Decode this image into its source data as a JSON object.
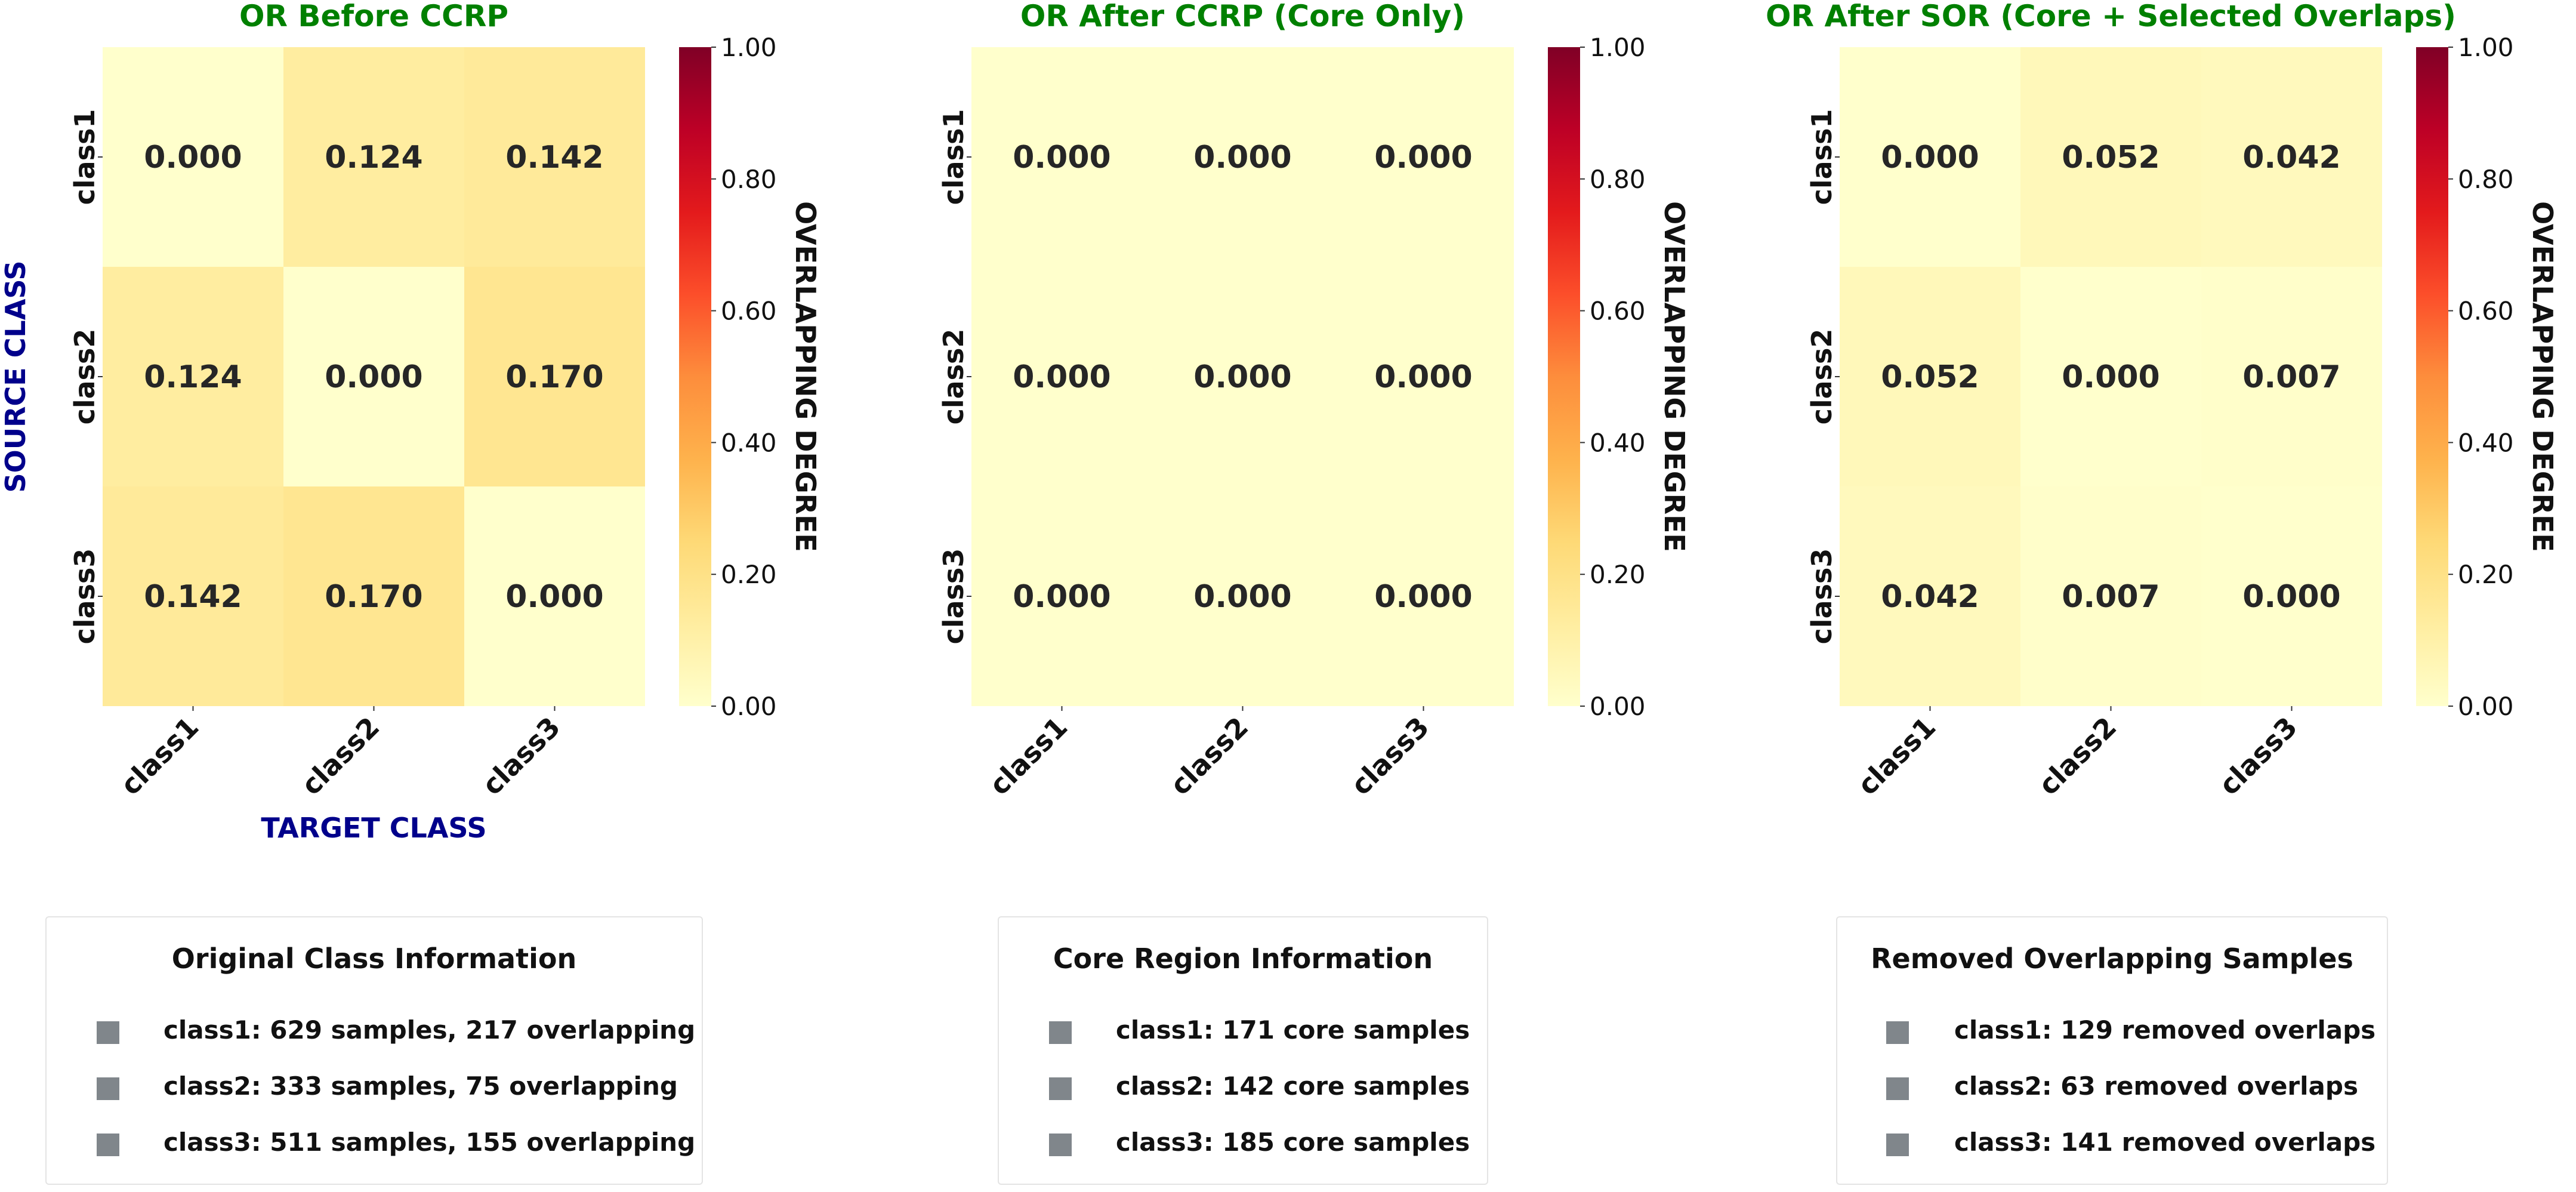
{
  "chart_data": [
    {
      "type": "heatmap",
      "title": "OR Before CCRP",
      "xlabel": "TARGET CLASS",
      "ylabel": "SOURCE CLASS",
      "x_categories": [
        "class1",
        "class2",
        "class3"
      ],
      "y_categories": [
        "class1",
        "class2",
        "class3"
      ],
      "values": [
        [
          0.0,
          0.124,
          0.142
        ],
        [
          0.124,
          0.0,
          0.17
        ],
        [
          0.142,
          0.17,
          0.0
        ]
      ],
      "value_labels": [
        [
          "0.000",
          "0.124",
          "0.142"
        ],
        [
          "0.124",
          "0.000",
          "0.170"
        ],
        [
          "0.142",
          "0.170",
          "0.000"
        ]
      ],
      "colorbar": {
        "label": "OVERLAPPING DEGREE",
        "range": [
          0.0,
          1.0
        ],
        "ticks": [
          "0.00",
          "0.20",
          "0.40",
          "0.60",
          "0.80",
          "1.00"
        ],
        "colormap": "YlOrRd"
      }
    },
    {
      "type": "heatmap",
      "title": "OR After CCRP (Core Only)",
      "xlabel": "",
      "ylabel": "",
      "x_categories": [
        "class1",
        "class2",
        "class3"
      ],
      "y_categories": [
        "class1",
        "class2",
        "class3"
      ],
      "values": [
        [
          0.0,
          0.0,
          0.0
        ],
        [
          0.0,
          0.0,
          0.0
        ],
        [
          0.0,
          0.0,
          0.0
        ]
      ],
      "value_labels": [
        [
          "0.000",
          "0.000",
          "0.000"
        ],
        [
          "0.000",
          "0.000",
          "0.000"
        ],
        [
          "0.000",
          "0.000",
          "0.000"
        ]
      ],
      "colorbar": {
        "label": "OVERLAPPING DEGREE",
        "range": [
          0.0,
          1.0
        ],
        "ticks": [
          "0.00",
          "0.20",
          "0.40",
          "0.60",
          "0.80",
          "1.00"
        ],
        "colormap": "YlOrRd"
      }
    },
    {
      "type": "heatmap",
      "title": "OR After SOR (Core + Selected Overlaps)",
      "xlabel": "",
      "ylabel": "",
      "x_categories": [
        "class1",
        "class2",
        "class3"
      ],
      "y_categories": [
        "class1",
        "class2",
        "class3"
      ],
      "values": [
        [
          0.0,
          0.052,
          0.042
        ],
        [
          0.052,
          0.0,
          0.007
        ],
        [
          0.042,
          0.007,
          0.0
        ]
      ],
      "value_labels": [
        [
          "0.000",
          "0.052",
          "0.042"
        ],
        [
          "0.052",
          "0.000",
          "0.007"
        ],
        [
          "0.042",
          "0.007",
          "0.000"
        ]
      ],
      "colorbar": {
        "label": "OVERLAPPING DEGREE",
        "range": [
          0.0,
          1.0
        ],
        "ticks": [
          "0.00",
          "0.20",
          "0.40",
          "0.60",
          "0.80",
          "1.00"
        ],
        "colormap": "YlOrRd"
      }
    }
  ],
  "colors": {
    "title": "#008000",
    "axis_label": "#00008b",
    "cell_text": "#262626",
    "legend_swatch": "#80868b"
  },
  "legends": [
    {
      "title": "Original Class Information",
      "items": [
        "class1: 629 samples, 217 overlapping",
        "class2: 333 samples, 75 overlapping",
        "class3: 511 samples, 155 overlapping"
      ]
    },
    {
      "title": "Core Region Information",
      "items": [
        "class1: 171 core samples",
        "class2: 142 core samples",
        "class3: 185 core samples"
      ]
    },
    {
      "title": "Removed Overlapping Samples",
      "items": [
        "class1: 129 removed overlaps",
        "class2: 63 removed overlaps",
        "class3: 141 removed overlaps"
      ]
    }
  ]
}
